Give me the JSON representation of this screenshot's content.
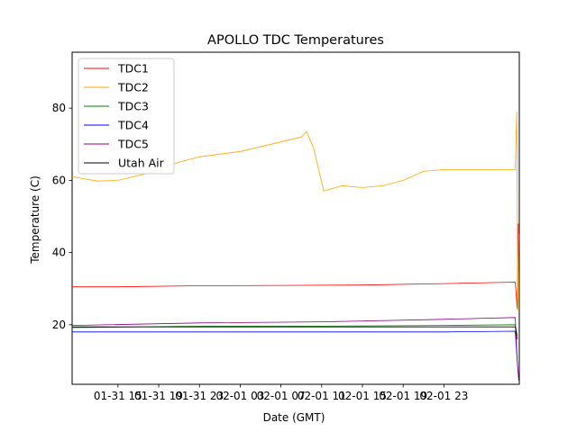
{
  "chart_data": {
    "type": "line",
    "title": "APOLLO TDC Temperatures",
    "xlabel": "Date (GMT)",
    "ylabel": "Temperature (C)",
    "xlim": [
      -4.5,
      39.4
    ],
    "ylim": [
      3.5,
      95.5
    ],
    "x_unit": "hours since 2019-01-31 15:00 GMT",
    "xticks": [
      {
        "x": 0,
        "label": "01-31 15"
      },
      {
        "x": 4,
        "label": "01-31 19"
      },
      {
        "x": 8,
        "label": "01-31 23"
      },
      {
        "x": 12,
        "label": "02-01 03"
      },
      {
        "x": 16,
        "label": "02-01 07"
      },
      {
        "x": 20,
        "label": "02-01 11"
      },
      {
        "x": 24,
        "label": "02-01 15"
      },
      {
        "x": 28,
        "label": "02-01 19"
      },
      {
        "x": 32,
        "label": "02-01 23"
      }
    ],
    "yticks": [
      {
        "y": 20,
        "label": "20"
      },
      {
        "y": 40,
        "label": "40"
      },
      {
        "y": 60,
        "label": "60"
      },
      {
        "y": 80,
        "label": "80"
      }
    ],
    "grid": false,
    "legend_position": "top-left",
    "series": [
      {
        "name": "TDC1",
        "color": "#ff0000",
        "x": [
          -4.5,
          0,
          8,
          16,
          24,
          32,
          39.0,
          39.2,
          39.3
        ],
        "y": [
          30.5,
          30.5,
          30.8,
          30.9,
          31.0,
          31.4,
          31.8,
          24.5,
          48.0
        ]
      },
      {
        "name": "TDC2",
        "color": "#ffa500",
        "x": [
          -4.5,
          -2,
          0,
          3,
          6,
          8,
          12,
          15,
          18,
          18.5,
          19.2,
          20.2,
          22,
          24,
          26,
          28,
          30,
          32,
          39.0,
          39.15,
          39.25,
          39.35
        ],
        "y": [
          61.0,
          59.8,
          60.0,
          62.0,
          65.0,
          66.5,
          68.0,
          70.0,
          72.0,
          73.5,
          69.0,
          57.0,
          58.5,
          58.0,
          58.5,
          60.0,
          62.5,
          63.0,
          63.0,
          79.0,
          24.0,
          45.0
        ]
      },
      {
        "name": "TDC3",
        "color": "#008000",
        "x": [
          -4.5,
          8,
          20,
          32,
          39.0,
          39.2
        ],
        "y": [
          19.2,
          19.6,
          19.6,
          19.8,
          20.0,
          17.0
        ]
      },
      {
        "name": "TDC4",
        "color": "#0000ff",
        "x": [
          -4.5,
          8,
          20,
          32,
          39.0,
          39.2,
          39.35
        ],
        "y": [
          18.0,
          18.0,
          18.0,
          18.0,
          18.2,
          10.0,
          5.0
        ]
      },
      {
        "name": "TDC5",
        "color": "#8b008b",
        "x": [
          -4.5,
          8,
          20,
          32,
          39.0,
          39.2,
          39.35
        ],
        "y": [
          19.8,
          20.5,
          20.8,
          21.5,
          22.0,
          10.0,
          4.5
        ]
      },
      {
        "name": "Utah Air",
        "color": "#000000",
        "x": [
          -4.5,
          8,
          20,
          32,
          39.0,
          39.2
        ],
        "y": [
          19.4,
          19.4,
          19.4,
          19.4,
          19.4,
          16.0
        ]
      }
    ]
  }
}
